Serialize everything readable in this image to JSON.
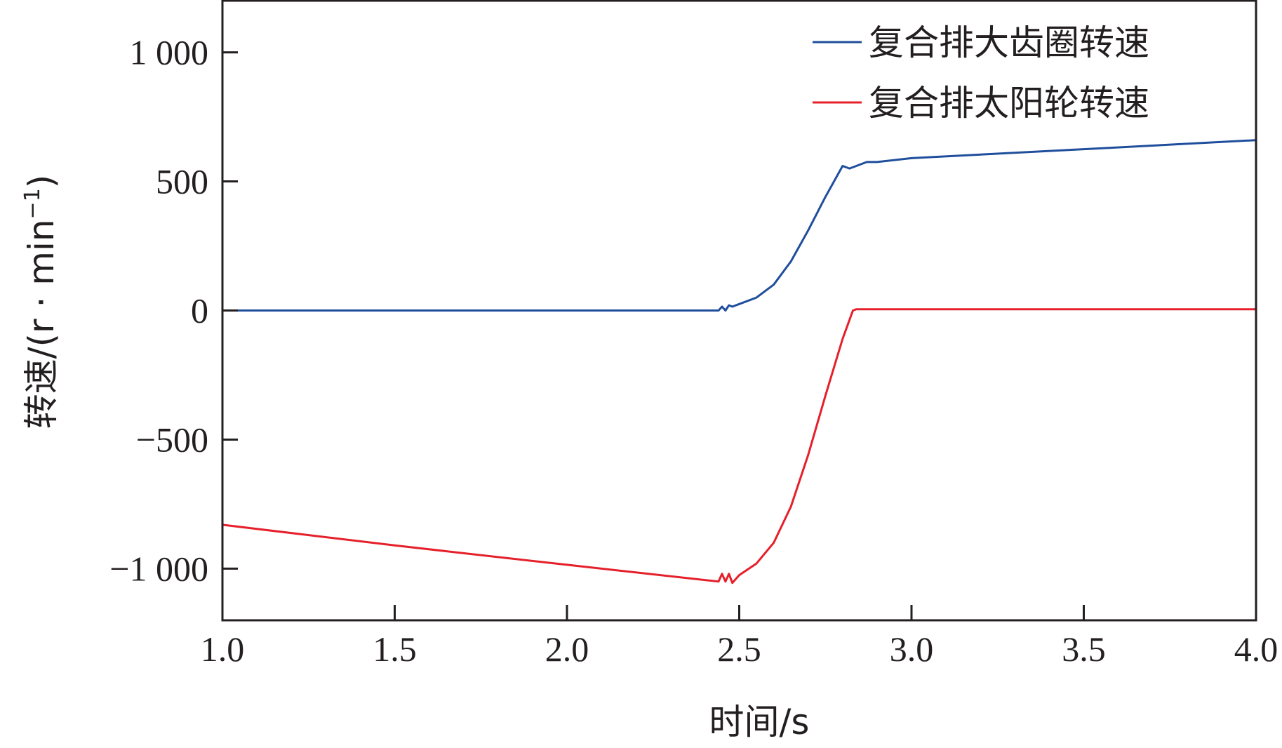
{
  "chart_data": {
    "type": "line",
    "title": "",
    "xlabel": "时间/s",
    "ylabel": "转速/(r · min",
    "ylabel_sup": "−1",
    "ylabel_close": ")",
    "xlim": [
      1.0,
      4.0
    ],
    "ylim": [
      -1200,
      1200
    ],
    "x_ticks": [
      1.0,
      1.5,
      2.0,
      2.5,
      3.0,
      3.5,
      4.0
    ],
    "x_tick_labels": [
      "1.0",
      "1.5",
      "2.0",
      "2.5",
      "3.0",
      "3.5",
      "4.0"
    ],
    "y_ticks": [
      1000,
      500,
      0,
      -500,
      -1000
    ],
    "y_tick_labels": [
      "1 000",
      "500",
      "0",
      "−500",
      "−1 000"
    ],
    "grid": false,
    "legend_position": "top-right",
    "series": [
      {
        "name": "复合排大齿圈转速",
        "color": "#1f4e9c",
        "x": [
          1.0,
          2.44,
          2.45,
          2.46,
          2.47,
          2.48,
          2.5,
          2.55,
          2.6,
          2.65,
          2.7,
          2.75,
          2.8,
          2.82,
          2.84,
          2.87,
          2.9,
          3.0,
          3.5,
          4.0
        ],
        "y": [
          0,
          0,
          15,
          0,
          20,
          15,
          25,
          50,
          100,
          190,
          310,
          440,
          560,
          550,
          560,
          575,
          575,
          590,
          625,
          660
        ]
      },
      {
        "name": "复合排太阳轮转速",
        "color": "#e5202a",
        "x": [
          1.0,
          1.5,
          2.0,
          2.44,
          2.45,
          2.46,
          2.47,
          2.48,
          2.5,
          2.55,
          2.6,
          2.65,
          2.7,
          2.75,
          2.8,
          2.83,
          2.84,
          3.0,
          3.5,
          4.0
        ],
        "y": [
          -830,
          -910,
          -985,
          -1050,
          -1020,
          -1050,
          -1020,
          -1055,
          -1025,
          -980,
          -900,
          -760,
          -560,
          -330,
          -110,
          0,
          5,
          5,
          5,
          5
        ]
      }
    ]
  }
}
